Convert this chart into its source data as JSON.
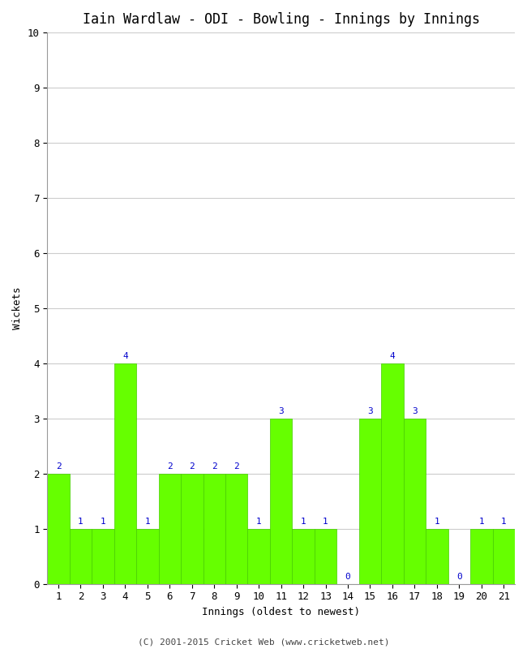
{
  "title": "Iain Wardlaw - ODI - Bowling - Innings by Innings",
  "xlabel": "Innings (oldest to newest)",
  "ylabel": "Wickets",
  "categories": [
    1,
    2,
    3,
    4,
    5,
    6,
    7,
    8,
    9,
    10,
    11,
    12,
    13,
    14,
    15,
    16,
    17,
    18,
    19,
    20,
    21
  ],
  "values": [
    2,
    1,
    1,
    4,
    1,
    2,
    2,
    2,
    2,
    1,
    3,
    1,
    1,
    0,
    3,
    4,
    3,
    1,
    0,
    1,
    1
  ],
  "bar_color": "#66ff00",
  "bar_edge_color": "#44cc00",
  "label_color": "#0000cc",
  "background_color": "#ffffff",
  "ylim": [
    0,
    10
  ],
  "yticks": [
    0,
    1,
    2,
    3,
    4,
    5,
    6,
    7,
    8,
    9,
    10
  ],
  "grid_color": "#cccccc",
  "title_fontsize": 12,
  "axis_label_fontsize": 9,
  "tick_fontsize": 9,
  "bar_label_fontsize": 8,
  "footer": "(C) 2001-2015 Cricket Web (www.cricketweb.net)"
}
